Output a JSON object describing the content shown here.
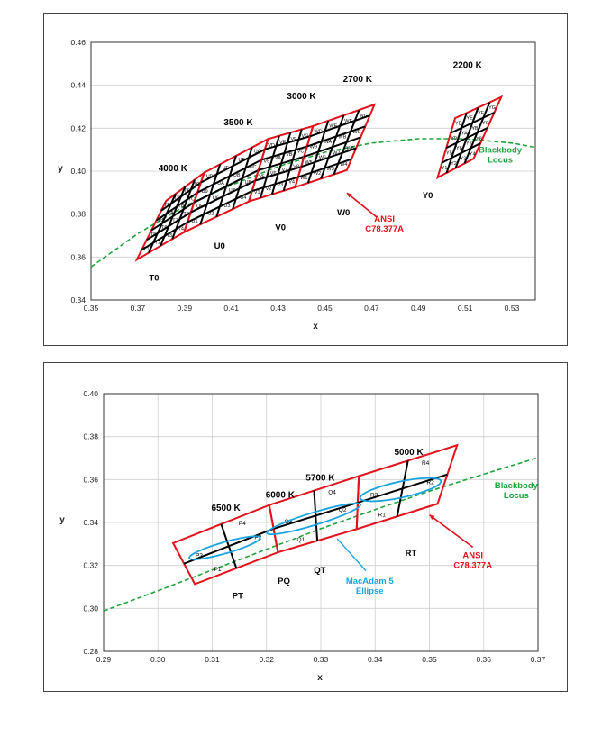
{
  "colors": {
    "bin_outline": "#e2111a",
    "subdivision": "#000000",
    "locus": "#1ea33c",
    "ellipse": "#1aa3e0",
    "grid": "#cfcfcf"
  },
  "chart_data": [
    {
      "type": "scatter",
      "title": "",
      "xlabel": "x",
      "ylabel": "y",
      "xlim": [
        0.35,
        0.54
      ],
      "ylim": [
        0.34,
        0.46
      ],
      "xticks": [
        "0.35",
        "0.37",
        "0.39",
        "0.41",
        "0.43",
        "0.45",
        "0.47",
        "0.49",
        "0.51",
        "0.53"
      ],
      "yticks": [
        "0.34",
        "0.36",
        "0.38",
        "0.40",
        "0.42",
        "0.44",
        "0.46"
      ],
      "grid": "horizontal",
      "cct_labels": [
        {
          "text": "4000 K",
          "x": 0.385,
          "y": 0.4
        },
        {
          "text": "3500 K",
          "x": 0.413,
          "y": 0.4215
        },
        {
          "text": "3000 K",
          "x": 0.44,
          "y": 0.4335
        },
        {
          "text": "2700 K",
          "x": 0.464,
          "y": 0.4415
        },
        {
          "text": "2200 K",
          "x": 0.511,
          "y": 0.448
        }
      ],
      "region_labels": [
        {
          "text": "T0",
          "x": 0.377,
          "y": 0.349
        },
        {
          "text": "U0",
          "x": 0.405,
          "y": 0.364
        },
        {
          "text": "V0",
          "x": 0.431,
          "y": 0.3725
        },
        {
          "text": "W0",
          "x": 0.458,
          "y": 0.3795
        },
        {
          "text": "Y0",
          "x": 0.494,
          "y": 0.3875
        }
      ],
      "bins": [
        {
          "name": "4000K",
          "corners": [
            [
              0.3696,
              0.3588
            ],
            [
              0.3821,
              0.3862
            ],
            [
              0.3984,
              0.3993
            ],
            [
              0.3898,
              0.3716
            ]
          ],
          "nx": 4,
          "ny": 6
        },
        {
          "name": "3500K",
          "corners": [
            [
              0.3898,
              0.3716
            ],
            [
              0.3984,
              0.3993
            ],
            [
              0.4257,
              0.415
            ],
            [
              0.4175,
              0.3859
            ]
          ],
          "nx": 4,
          "ny": 6
        },
        {
          "name": "3000K",
          "corners": [
            [
              0.4175,
              0.3859
            ],
            [
              0.4257,
              0.415
            ],
            [
              0.4449,
              0.421
            ],
            [
              0.4373,
              0.3925
            ]
          ],
          "nx": 4,
          "ny": 6
        },
        {
          "name": "2700K",
          "corners": [
            [
              0.4373,
              0.3925
            ],
            [
              0.4449,
              0.421
            ],
            [
              0.4712,
              0.431
            ],
            [
              0.4594,
              0.4005
            ]
          ],
          "nx": 4,
          "ny": 6
        },
        {
          "name": "2200K",
          "corners": [
            [
              0.4982,
              0.397
            ],
            [
              0.5057,
              0.4247
            ],
            [
              0.5254,
              0.4345
            ],
            [
              0.5136,
              0.4058
            ]
          ],
          "nx": 4,
          "ny": 4
        }
      ],
      "cell_codes": [
        {
          "bin": "4000K",
          "codes": [
            "T1",
            "T2",
            "T3",
            "T4",
            "T5",
            "T6",
            "T7",
            "T8",
            "T9",
            "TA",
            "TB",
            "TC",
            "TD",
            "TE",
            "TF",
            "TG"
          ]
        },
        {
          "bin": "3500K",
          "codes": [
            "U1",
            "U2",
            "U3",
            "U4",
            "U5",
            "U6",
            "U7",
            "U8",
            "U9",
            "UA",
            "UB",
            "UC",
            "UD",
            "UE",
            "UF",
            "UG"
          ]
        },
        {
          "bin": "3000K",
          "codes": [
            "V1",
            "V2",
            "V3",
            "V4",
            "V5",
            "V6",
            "V7",
            "V8",
            "V9",
            "VA",
            "VB",
            "VC",
            "VD",
            "VE",
            "VF",
            "VG"
          ]
        },
        {
          "bin": "2700K",
          "codes": [
            "W1",
            "W2",
            "W3",
            "W4",
            "W5",
            "W6",
            "W7",
            "W8",
            "W9",
            "WA",
            "WB",
            "WC",
            "WD",
            "WE",
            "WF",
            "WG"
          ]
        },
        {
          "bin": "2200K",
          "codes": [
            "Y1",
            "Y2",
            "Y3",
            "Y4",
            "Y5",
            "Y6",
            "Y7",
            "Y8",
            "Y9",
            "YA",
            "YB",
            "YC",
            "YD",
            "YE",
            "YF",
            "YG"
          ]
        }
      ],
      "blackbody_locus": [
        [
          0.35,
          0.3554
        ],
        [
          0.37,
          0.3709
        ],
        [
          0.39,
          0.3837
        ],
        [
          0.41,
          0.3935
        ],
        [
          0.43,
          0.4021
        ],
        [
          0.45,
          0.4088
        ],
        [
          0.47,
          0.4131
        ],
        [
          0.49,
          0.4151
        ],
        [
          0.51,
          0.4151
        ],
        [
          0.53,
          0.4131
        ],
        [
          0.54,
          0.4111
        ]
      ],
      "annotations": {
        "locus_label": [
          "Blackbody",
          "Locus"
        ],
        "ansi_label": [
          "ANSI",
          "C78.377A"
        ]
      }
    },
    {
      "type": "scatter",
      "title": "",
      "xlabel": "x",
      "ylabel": "y",
      "xlim": [
        0.29,
        0.37
      ],
      "ylim": [
        0.28,
        0.4
      ],
      "xticks": [
        "0.29",
        "0.30",
        "0.31",
        "0.32",
        "0.33",
        "0.34",
        "0.35",
        "0.36",
        "0.37"
      ],
      "yticks": [
        "0.28",
        "0.30",
        "0.32",
        "0.34",
        "0.36",
        "0.38",
        "0.40"
      ],
      "grid": "both",
      "cct_labels": [
        {
          "text": "6500 K",
          "x": 0.3125,
          "y": 0.3455
        },
        {
          "text": "6000 K",
          "x": 0.3225,
          "y": 0.3515
        },
        {
          "text": "5700 K",
          "x": 0.3299,
          "y": 0.3595
        },
        {
          "text": "5000 K",
          "x": 0.3462,
          "y": 0.3715
        }
      ],
      "region_labels": [
        {
          "text": "PT",
          "x": 0.3147,
          "y": 0.3045
        },
        {
          "text": "PQ",
          "x": 0.3232,
          "y": 0.3115
        },
        {
          "text": "QT",
          "x": 0.3298,
          "y": 0.3165
        },
        {
          "text": "RT",
          "x": 0.3466,
          "y": 0.3245
        }
      ],
      "bins": [
        {
          "name": "6500K",
          "corners": [
            [
              0.3068,
              0.3113
            ],
            [
              0.3028,
              0.3304
            ],
            [
              0.3205,
              0.3481
            ],
            [
              0.3221,
              0.3261
            ]
          ],
          "nx": 2,
          "ny": 2
        },
        {
          "name": "5700K",
          "corners": [
            [
              0.3221,
              0.3261
            ],
            [
              0.3205,
              0.3481
            ],
            [
              0.337,
              0.3616
            ],
            [
              0.3366,
              0.3369
            ]
          ],
          "nx": 2,
          "ny": 2
        },
        {
          "name": "5000K",
          "corners": [
            [
              0.3366,
              0.3369
            ],
            [
              0.337,
              0.3616
            ],
            [
              0.3551,
              0.376
            ],
            [
              0.3515,
              0.3487
            ]
          ],
          "nx": 2,
          "ny": 2
        }
      ],
      "cell_codes": [
        {
          "bin": "6500K",
          "codes": [
            "P1",
            "P2",
            "P3",
            "P4"
          ]
        },
        {
          "bin": "5700K",
          "codes": [
            "Q1",
            "Q2",
            "Q3",
            "Q4"
          ]
        },
        {
          "bin": "5000K",
          "codes": [
            "R1",
            "R2",
            "R3",
            "R4"
          ]
        }
      ],
      "macadam_ellipses": [
        {
          "cx": 0.3123,
          "cy": 0.3282,
          "a": 0.0048,
          "b": 0.0068,
          "angle_deg": 58
        },
        {
          "cx": 0.3287,
          "cy": 0.3417,
          "a": 0.0053,
          "b": 0.009,
          "angle_deg": 59
        },
        {
          "cx": 0.3447,
          "cy": 0.3553,
          "a": 0.0068,
          "b": 0.0076,
          "angle_deg": 54
        }
      ],
      "blackbody_locus": [
        [
          0.29,
          0.2988
        ],
        [
          0.3,
          0.3082
        ],
        [
          0.31,
          0.3179
        ],
        [
          0.32,
          0.3275
        ],
        [
          0.33,
          0.3371
        ],
        [
          0.34,
          0.346
        ],
        [
          0.35,
          0.3546
        ],
        [
          0.36,
          0.3625
        ],
        [
          0.37,
          0.3702
        ]
      ],
      "annotations": {
        "locus_label": [
          "Blackbody",
          "Locus"
        ],
        "ansi_label": [
          "ANSI",
          "C78.377A"
        ],
        "ellipse_label": [
          "MacAdam 5",
          "Ellipse"
        ]
      }
    }
  ]
}
